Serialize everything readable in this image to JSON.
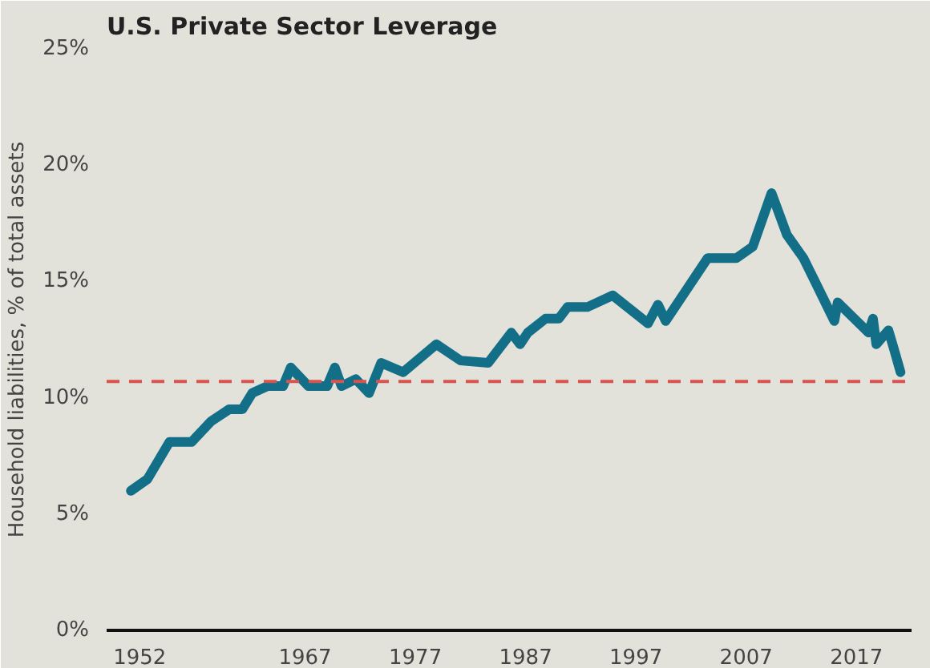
{
  "chart_data": {
    "type": "line",
    "title": "U.S. Private Sector Leverage",
    "ylabel": "Household liabilities, % of total assets",
    "x": [
      1951.2,
      1952.7,
      1954.7,
      1956.7,
      1958.5,
      1960.1,
      1961.3,
      1962.2,
      1963.6,
      1965.0,
      1965.7,
      1967.3,
      1969.0,
      1969.7,
      1970.3,
      1971.6,
      1972.8,
      1973.9,
      1975.9,
      1978.9,
      1981.1,
      1983.6,
      1985.7,
      1986.5,
      1987.2,
      1988.8,
      1990.0,
      1990.8,
      1992.6,
      1994.9,
      1998.1,
      1999.0,
      1999.7,
      2003.5,
      2006.1,
      2007.6,
      2009.3,
      2010.7,
      2012.2,
      2015.0,
      2015.3,
      2018.1,
      2018.5,
      2018.8,
      2019.9,
      2020.4,
      2021.0
    ],
    "series": [
      {
        "color": "#136f87",
        "values": [
          6.0,
          6.5,
          8.1,
          8.1,
          9.0,
          9.5,
          9.5,
          10.2,
          10.5,
          10.5,
          11.3,
          10.5,
          10.5,
          11.3,
          10.5,
          10.8,
          10.2,
          11.5,
          11.1,
          12.3,
          11.6,
          11.5,
          12.8,
          12.3,
          12.8,
          13.4,
          13.4,
          13.9,
          13.9,
          14.4,
          13.2,
          14.0,
          13.3,
          16.0,
          16.0,
          16.5,
          18.8,
          17.0,
          16.0,
          13.3,
          14.1,
          12.8,
          13.4,
          12.3,
          12.9,
          12.1,
          11.1
        ]
      }
    ],
    "xlim": [
      1949,
      2022
    ],
    "xticks": [
      1952,
      1967,
      1977,
      1987,
      1997,
      2007,
      2017
    ],
    "ylim": [
      0,
      25
    ],
    "yticks": [
      {
        "value": 0,
        "label": "0%"
      },
      {
        "value": 5,
        "label": "5%"
      },
      {
        "value": 10,
        "label": "10%"
      },
      {
        "value": 15,
        "label": "15%"
      },
      {
        "value": 20,
        "label": "20%"
      },
      {
        "value": 25,
        "label": "25%"
      }
    ],
    "ref_lines": [
      {
        "axis": "y",
        "value": 10.7,
        "color": "#d9534f",
        "line_style": "dashed"
      }
    ],
    "grid": false
  }
}
